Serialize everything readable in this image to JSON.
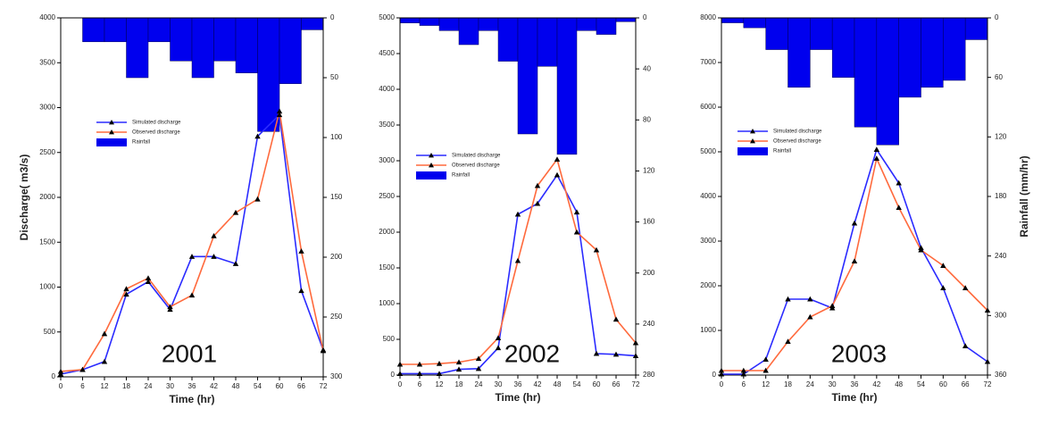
{
  "chart_data": [
    {
      "type": "combo",
      "annotation": "2001",
      "xlabel": "Time (hr)",
      "ylabel": "Discharge( m3/s)",
      "x": [
        0,
        6,
        12,
        18,
        24,
        30,
        36,
        42,
        48,
        54,
        60,
        66,
        72
      ],
      "xlim": [
        0,
        72
      ],
      "xticks": [
        0,
        6,
        12,
        18,
        24,
        30,
        36,
        42,
        48,
        54,
        60,
        66,
        72
      ],
      "ylim": [
        0,
        4000
      ],
      "yticks": [
        0,
        500,
        1000,
        1500,
        2000,
        2500,
        3000,
        3500,
        4000
      ],
      "y2lim": [
        0,
        300
      ],
      "y2ticks": [
        0,
        50,
        100,
        150,
        200,
        250,
        300
      ],
      "y2_inverted": true,
      "series": [
        {
          "name": "Simulated discharge",
          "color": "#2b2bff",
          "values": [
            30,
            80,
            170,
            920,
            1060,
            750,
            1340,
            1340,
            1260,
            2680,
            2920,
            960,
            300
          ]
        },
        {
          "name": "Observed discharge",
          "color": "#ff6a3d",
          "values": [
            60,
            80,
            480,
            980,
            1100,
            780,
            910,
            1570,
            1830,
            1980,
            2960,
            1400,
            290
          ]
        },
        {
          "name": "Rainfall",
          "color": "#0000ee",
          "type": "bar",
          "axis": "y2",
          "x": [
            6,
            12,
            18,
            24,
            30,
            36,
            42,
            48,
            54,
            60,
            66
          ],
          "values": [
            20,
            20,
            50,
            20,
            36,
            50,
            36,
            46,
            95,
            55,
            10
          ]
        }
      ]
    },
    {
      "type": "combo",
      "annotation": "2002",
      "xlabel": "Time (hr)",
      "x": [
        0,
        6,
        12,
        18,
        24,
        30,
        36,
        42,
        48,
        54,
        60,
        66,
        72
      ],
      "xlim": [
        0,
        72
      ],
      "xticks": [
        0,
        6,
        12,
        18,
        24,
        30,
        36,
        42,
        48,
        54,
        60,
        66,
        72
      ],
      "ylim": [
        0,
        5000
      ],
      "yticks": [
        0,
        500,
        1000,
        1500,
        2000,
        2500,
        3000,
        3500,
        4000,
        4500,
        5000
      ],
      "y2lim": [
        0,
        280
      ],
      "y2ticks": [
        0,
        40,
        80,
        120,
        160,
        200,
        240,
        280
      ],
      "y2_inverted": true,
      "series": [
        {
          "name": "Simulated discharge",
          "color": "#2b2bff",
          "values": [
            20,
            20,
            20,
            80,
            90,
            380,
            2250,
            2400,
            2800,
            2280,
            300,
            290,
            270
          ]
        },
        {
          "name": "Observed discharge",
          "color": "#ff6a3d",
          "values": [
            150,
            150,
            160,
            180,
            230,
            520,
            1600,
            2650,
            3020,
            2000,
            1750,
            780,
            450
          ]
        },
        {
          "name": "Rainfall",
          "color": "#0000ee",
          "type": "bar",
          "axis": "y2",
          "x": [
            0,
            6,
            12,
            18,
            24,
            30,
            36,
            42,
            48,
            54,
            60,
            66
          ],
          "values": [
            4,
            6,
            10,
            21,
            10,
            34,
            91,
            38,
            107,
            10,
            13,
            3
          ]
        }
      ]
    },
    {
      "type": "combo",
      "annotation": "2003",
      "xlabel": "Time (hr)",
      "y2label": "Rainfall (mm/hr)",
      "x": [
        0,
        6,
        12,
        18,
        24,
        30,
        36,
        42,
        48,
        54,
        60,
        66,
        72
      ],
      "xlim": [
        0,
        72
      ],
      "xticks": [
        0,
        6,
        12,
        18,
        24,
        30,
        36,
        42,
        48,
        54,
        60,
        66,
        72
      ],
      "ylim": [
        0,
        8000
      ],
      "yticks": [
        0,
        1000,
        2000,
        3000,
        4000,
        5000,
        6000,
        7000,
        8000
      ],
      "y2lim": [
        0,
        360
      ],
      "y2ticks": [
        0,
        60,
        120,
        180,
        240,
        300,
        360
      ],
      "y2_inverted": true,
      "series": [
        {
          "name": "Simulated discharge",
          "color": "#2b2bff",
          "values": [
            20,
            20,
            350,
            1700,
            1700,
            1500,
            3400,
            5050,
            4300,
            2850,
            1950,
            650,
            300
          ]
        },
        {
          "name": "Observed discharge",
          "color": "#ff6a3d",
          "values": [
            100,
            100,
            100,
            750,
            1300,
            1550,
            2550,
            4850,
            3750,
            2800,
            2450,
            1950,
            1450
          ]
        },
        {
          "name": "Rainfall",
          "color": "#0000ee",
          "type": "bar",
          "axis": "y2",
          "x": [
            0,
            6,
            12,
            18,
            24,
            30,
            36,
            42,
            48,
            54,
            60,
            66
          ],
          "values": [
            5,
            10,
            32,
            70,
            32,
            60,
            110,
            128,
            80,
            70,
            63,
            22
          ]
        }
      ]
    }
  ]
}
